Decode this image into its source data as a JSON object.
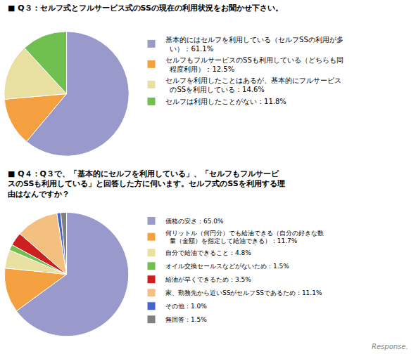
{
  "chart_data": [
    {
      "type": "pie",
      "title": "■ Q３：セルフ式とフルサービス式のSSの現在の利用状況をお聞かせ下さい。",
      "categories": [
        "基本的にはセルフを利用している（セルフSSの利用が多\n  い）：61.1%",
        "セルフもフルサービスのSSも利用している（どちらも同\n  程度利用）：12.5%",
        "セルフを利用したことはあるが、基本的にフルサービス\n  のSSを利用している：14.6%",
        "セルフは利用したことがない：11.8%"
      ],
      "values": [
        61.1,
        12.5,
        14.6,
        11.8
      ],
      "colors": [
        "#9999cc",
        "#f4a040",
        "#e8e0a0",
        "#70c050"
      ],
      "legend": "right"
    },
    {
      "type": "pie",
      "title": "■ Q４：Q３で、「基本的にセルフを利用している」、「セルフもフルサービ\nスのSSも利用している」と回答した方に伺います。セルフ式のSSを利用する理\n由はなんですか？",
      "categories": [
        "価格の安さ：65.0%",
        "何リットル（何円分）でも給油できる（自分の好きな数\n  量（金額）を指定して給油できる）：11.7%",
        "自分で給油できること：4.8%",
        "オイル交換セールスなどがないため：1.5%",
        "給油が早くできるため：3.5%",
        "家、勤務先から近いSSがセルフSSであるため：11.1%",
        "その他：1.0%",
        "無回答：1.5%"
      ],
      "values": [
        65.0,
        11.7,
        4.8,
        1.5,
        3.5,
        11.1,
        1.0,
        1.5
      ],
      "colors": [
        "#9999cc",
        "#f4a040",
        "#e8e0a0",
        "#70c050",
        "#cc2020",
        "#f4c080",
        "#4466cc",
        "#808080"
      ],
      "legend": "right",
      "annotations": [
        "Response."
      ]
    }
  ]
}
